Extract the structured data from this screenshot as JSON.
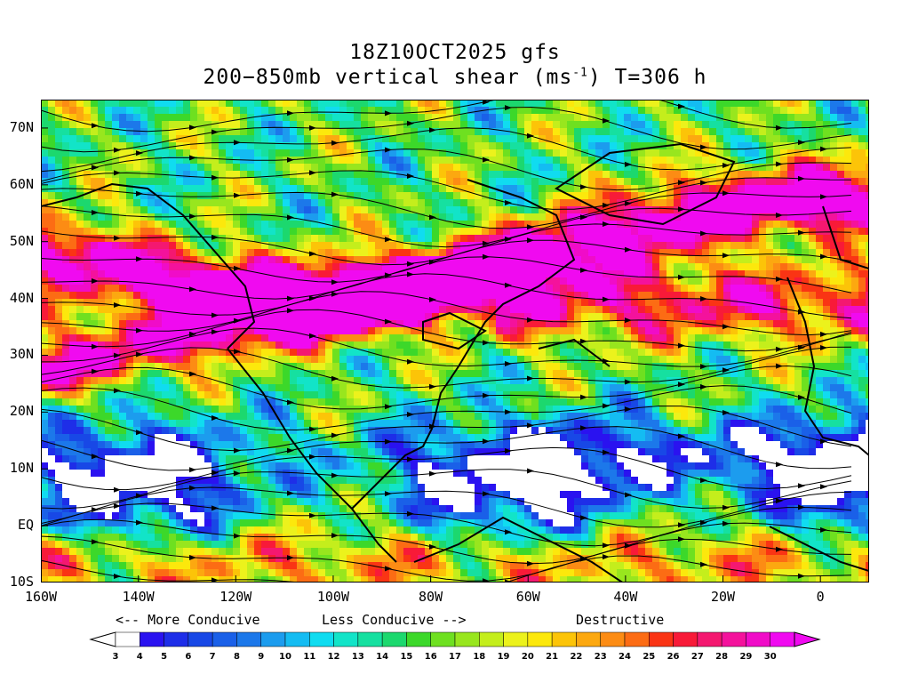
{
  "header": {
    "line1": "18Z10OCT2025 gfs",
    "line2_prefix": "200−850mb vertical shear (ms",
    "line2_exp": "-1",
    "line2_suffix": ") T=306 h"
  },
  "map": {
    "lat_labels": [
      "70N",
      "60N",
      "50N",
      "40N",
      "30N",
      "20N",
      "10N",
      "EQ",
      "10S"
    ],
    "lon_labels": [
      "160W",
      "140W",
      "120W",
      "100W",
      "80W",
      "60W",
      "40W",
      "20W",
      "0"
    ],
    "lat_range": [
      -10,
      75
    ],
    "lon_range": [
      -160,
      10
    ]
  },
  "legend": {
    "more_conducive": "<-- More Conducive",
    "less_conducive": "Less Conducive -->",
    "destructive": "Destructive",
    "levels": [
      "3",
      "4",
      "5",
      "6",
      "7",
      "8",
      "9",
      "10",
      "11",
      "12",
      "13",
      "14",
      "15",
      "16",
      "17",
      "18",
      "19",
      "20",
      "21",
      "22",
      "23",
      "24",
      "25",
      "26",
      "27",
      "28",
      "29",
      "30"
    ],
    "colors": [
      "#ffffff",
      "#2a12f0",
      "#1e2ee8",
      "#1848e6",
      "#1a60e8",
      "#1c78ea",
      "#1c9cee",
      "#14bcf2",
      "#10dcf0",
      "#12e4c8",
      "#16e0a0",
      "#1cd86e",
      "#3cd82a",
      "#6ee020",
      "#98e61e",
      "#c4ee1c",
      "#ecf21c",
      "#fce80c",
      "#fcc408",
      "#fca810",
      "#fc8c14",
      "#fc6c14",
      "#fa3414",
      "#f81a38",
      "#f41870",
      "#f4129c",
      "#f00cc8",
      "#f00af0"
    ]
  }
}
